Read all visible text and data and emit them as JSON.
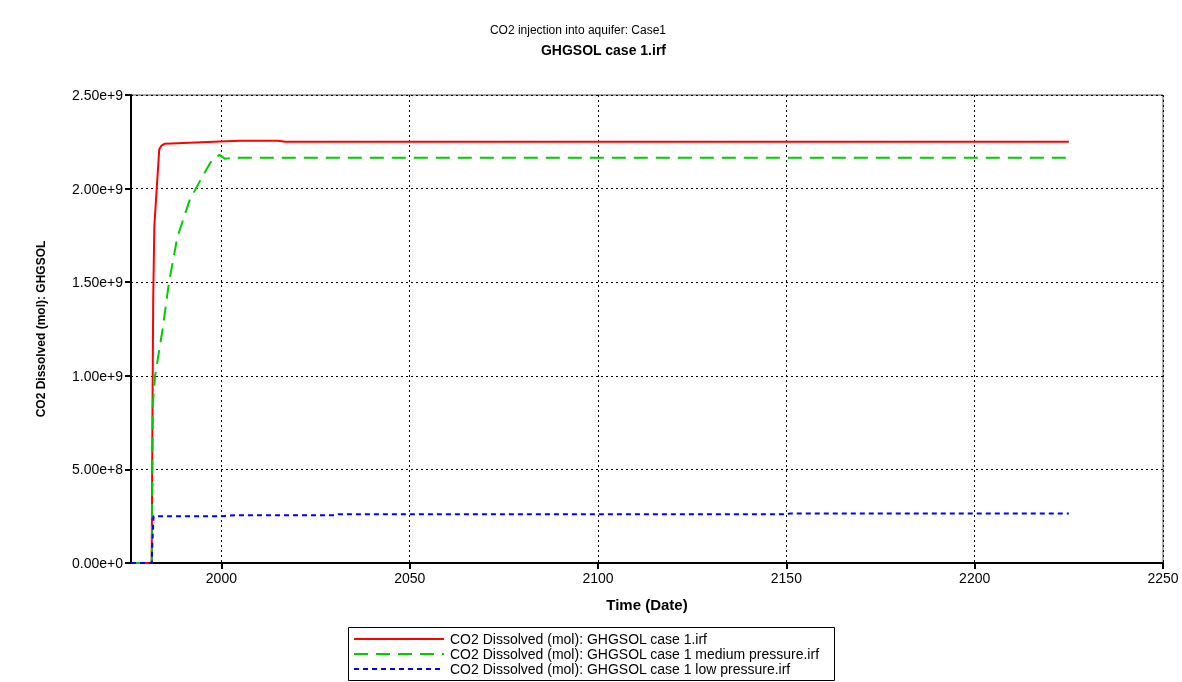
{
  "chart_data": {
    "type": "line",
    "title": "CO2 injection into aquifer: Case1",
    "subtitle": "GHGSOL case 1.irf",
    "xlabel": "Time (Date)",
    "ylabel": "CO2 Dissolved (mol): GHGSOL",
    "series": [
      {
        "name": "CO2 Dissolved (mol): GHGSOL case 1.irf",
        "color": "#ff0000",
        "line_style": "solid",
        "x": [
          1976,
          1981.5,
          1981.7,
          1981.9,
          1982.2,
          1982.8,
          1983.5,
          1984.1,
          1985,
          1998,
          2005,
          2015,
          2017,
          2225
        ],
        "values": [
          0,
          0,
          800000000.0,
          1420000000.0,
          1800000000.0,
          1990000000.0,
          2210000000.0,
          2230000000.0,
          2240000000.0,
          2250000000.0,
          2256000000.0,
          2256000000.0,
          2250000000.0,
          2250000000.0
        ]
      },
      {
        "name": "CO2 Dissolved (mol): GHGSOL case 1 medium pressure.irf",
        "color": "#00cc00",
        "line_style": "dashed",
        "x": [
          1976,
          1981.5,
          1981.8,
          1982.4,
          1984.4,
          1986.1,
          1988.3,
          1991.6,
          1994.3,
          1997.4,
          1999.5,
          2000.9,
          2003.7,
          2225
        ],
        "values": [
          0,
          0,
          850000000.0,
          1000000000.0,
          1250000000.0,
          1500000000.0,
          1740000000.0,
          1940000000.0,
          2040000000.0,
          2150000000.0,
          2180000000.0,
          2160000000.0,
          2165000000.0,
          2165000000.0
        ]
      },
      {
        "name": "CO2 Dissolved (mol): GHGSOL case 1 low pressure.irf",
        "color": "#0000ff",
        "line_style": "dotted",
        "x": [
          1976,
          1981.5,
          1981.7,
          1982,
          2000,
          2003.6,
          2030,
          2031,
          2150,
          2151,
          2225
        ],
        "values": [
          0,
          0,
          120000000.0,
          250000000.0,
          250000000.0,
          255000000.0,
          255000000.0,
          260000000.0,
          260000000.0,
          265000000.0,
          265000000.0
        ]
      }
    ],
    "xlim": [
      1976,
      2250
    ],
    "xticks": [
      2000,
      2050,
      2100,
      2150,
      2200,
      2250
    ],
    "ylim": [
      0,
      2500000000.0
    ],
    "yticks": [
      {
        "value": 0,
        "label": "0.00e+0"
      },
      {
        "value": 500000000.0,
        "label": "5.00e+8"
      },
      {
        "value": 1000000000.0,
        "label": "1.00e+9"
      },
      {
        "value": 1500000000.0,
        "label": "1.50e+9"
      },
      {
        "value": 2000000000.0,
        "label": "2.00e+9"
      },
      {
        "value": 2500000000.0,
        "label": "2.50e+9"
      }
    ],
    "grid": true,
    "legend": "bottom",
    "marker": "none"
  }
}
